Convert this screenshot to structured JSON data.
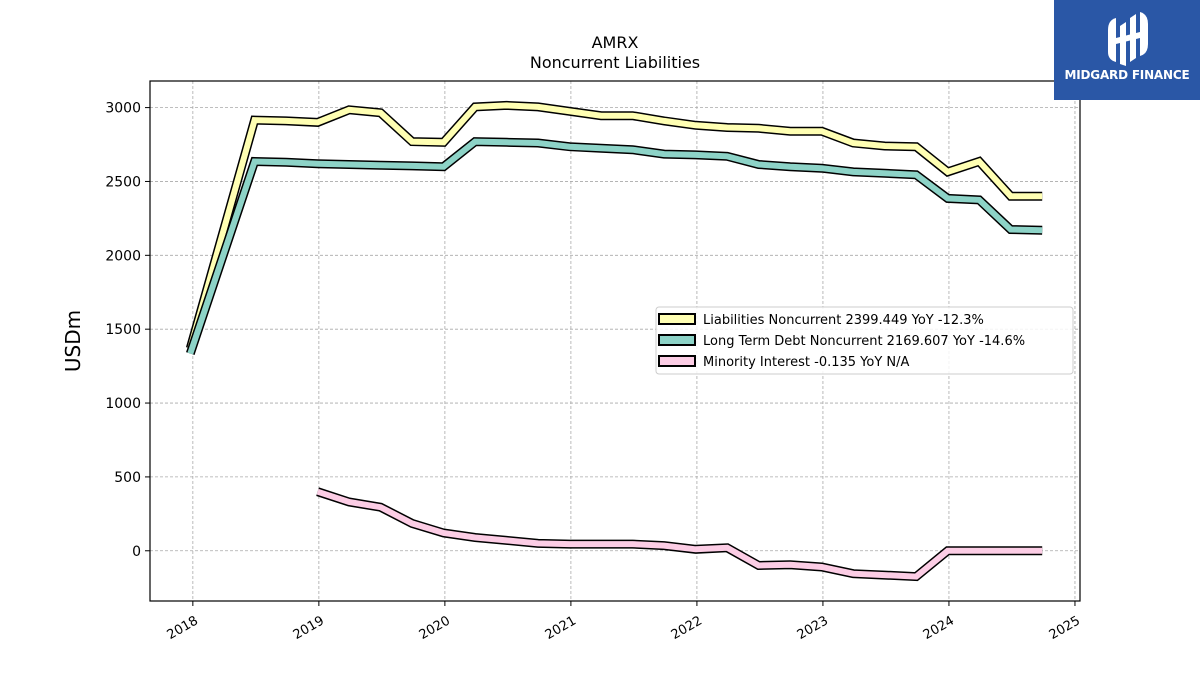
{
  "chart_data": {
    "type": "line",
    "title": "AMRX",
    "subtitle": "Noncurrent  Liabilities",
    "ylabel": "USDm",
    "xlabel": "",
    "xlim": [
      2017.66,
      2025.04
    ],
    "ylim": [
      -340,
      3180
    ],
    "x_ticks": [
      "2018",
      "2019",
      "2020",
      "2021",
      "2022",
      "2023",
      "2024",
      "2025"
    ],
    "y_ticks": [
      "0",
      "500",
      "1000",
      "1500",
      "2000",
      "2500",
      "3000"
    ],
    "grid": true,
    "legend_position": "center-right",
    "series": [
      {
        "name": "Liabilities Noncurrent  2399.449 YoY -12.3%",
        "color": "#ffffb3",
        "x": [
          2017.98,
          2018.49,
          2018.74,
          2018.99,
          2019.24,
          2019.49,
          2019.74,
          2019.99,
          2020.24,
          2020.49,
          2020.74,
          2020.99,
          2021.24,
          2021.49,
          2021.74,
          2021.99,
          2022.24,
          2022.49,
          2022.74,
          2022.99,
          2023.24,
          2023.49,
          2023.74,
          2023.99,
          2024.24,
          2024.49,
          2024.74
        ],
        "y": [
          1370,
          2915,
          2910,
          2900,
          2985,
          2965,
          2770,
          2765,
          3005,
          3015,
          3005,
          2975,
          2945,
          2945,
          2910,
          2880,
          2865,
          2860,
          2840,
          2840,
          2760,
          2740,
          2735,
          2565,
          2635,
          2400,
          2400
        ]
      },
      {
        "name": "Long Term Debt Noncurrent  2169.607 YoY -14.6%",
        "color": "#8dd3c7",
        "x": [
          2017.98,
          2018.49,
          2018.74,
          2018.99,
          2019.24,
          2019.49,
          2019.74,
          2019.99,
          2020.24,
          2020.49,
          2020.74,
          2020.99,
          2021.24,
          2021.49,
          2021.74,
          2021.99,
          2022.24,
          2022.49,
          2022.74,
          2022.99,
          2023.24,
          2023.49,
          2023.74,
          2023.99,
          2024.24,
          2024.49,
          2024.74
        ],
        "y": [
          1335,
          2635,
          2630,
          2620,
          2615,
          2610,
          2605,
          2600,
          2770,
          2765,
          2760,
          2735,
          2725,
          2715,
          2685,
          2680,
          2670,
          2615,
          2600,
          2590,
          2565,
          2555,
          2545,
          2385,
          2375,
          2175,
          2170
        ]
      },
      {
        "name": "Minority Interest  -0.135 YoY N/A",
        "color": "#fccde5",
        "x": [
          2018.99,
          2019.24,
          2019.49,
          2019.74,
          2019.99,
          2020.24,
          2020.49,
          2020.74,
          2020.99,
          2021.24,
          2021.49,
          2021.74,
          2021.99,
          2022.24,
          2022.49,
          2022.74,
          2022.99,
          2023.24,
          2023.49,
          2023.74,
          2023.99,
          2024.24,
          2024.49,
          2024.74
        ],
        "y": [
          400,
          330,
          295,
          185,
          120,
          90,
          70,
          50,
          45,
          45,
          45,
          35,
          10,
          20,
          -100,
          -95,
          -110,
          -155,
          -165,
          -175,
          0,
          0,
          0,
          0
        ]
      }
    ]
  },
  "logo": {
    "text": "MIDGARD FINANCE",
    "icon": "midgard-logo-icon"
  }
}
